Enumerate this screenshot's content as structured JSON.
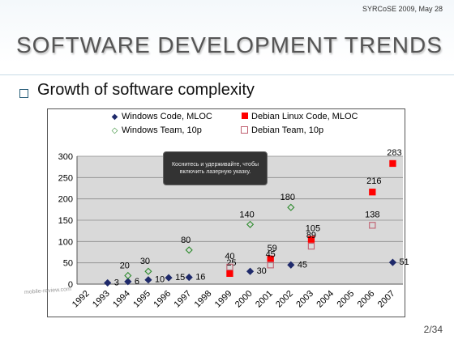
{
  "header": {
    "conference": "SYRCoSE 2009, May 28",
    "title": "Software Development Trends",
    "bullet": "Growth of software complexity"
  },
  "overlay": {
    "tooltip": "Коснитесь и удерживайте, чтобы включить лазерную указку.",
    "watermark": "mobile-review.com"
  },
  "footer": {
    "page": "2/34"
  },
  "colors": {
    "accent": "#2a5f7a",
    "plot_bg": "#d9d9d9",
    "windows_code": "#1f2a6b",
    "debian_code": "#ff0000",
    "windows_team": "#2e8b2e",
    "debian_team": "#c06070"
  },
  "chart_data": {
    "type": "scatter",
    "title": "",
    "xlabel": "",
    "ylabel": "",
    "ylim": [
      0,
      300
    ],
    "yticks": [
      "0",
      "50",
      "100",
      "150",
      "200",
      "250",
      "300"
    ],
    "categories": [
      "1992",
      "1993",
      "1994",
      "1995",
      "1996",
      "1997",
      "1998",
      "1999",
      "2000",
      "2001",
      "2002",
      "2003",
      "2004",
      "2005",
      "2006",
      "2007"
    ],
    "grid": true,
    "legend_position": "top",
    "series": [
      {
        "name": "Windows Code, MLOC",
        "marker": "diamond-filled",
        "color": "#1f2a6b",
        "points": [
          {
            "x": "1993",
            "y": 3,
            "label": "3"
          },
          {
            "x": "1994",
            "y": 6,
            "label": "6"
          },
          {
            "x": "1995",
            "y": 10,
            "label": "10"
          },
          {
            "x": "1996",
            "y": 15,
            "label": "15"
          },
          {
            "x": "1997",
            "y": 16,
            "label": "16"
          },
          {
            "x": "2000",
            "y": 30,
            "label": "30"
          },
          {
            "x": "2002",
            "y": 45,
            "label": "45"
          },
          {
            "x": "2007",
            "y": 51,
            "label": "51"
          }
        ]
      },
      {
        "name": "Windows Team, 10p",
        "marker": "diamond-open",
        "color": "#2e8b2e",
        "points": [
          {
            "x": "1994",
            "y": 20,
            "label": "20"
          },
          {
            "x": "1995",
            "y": 30,
            "label": "30"
          },
          {
            "x": "1997",
            "y": 80,
            "label": "80"
          },
          {
            "x": "2000",
            "y": 140,
            "label": "140"
          },
          {
            "x": "2002",
            "y": 180,
            "label": "180"
          }
        ]
      },
      {
        "name": "Debian Linux Code, MLOC",
        "marker": "square-filled",
        "color": "#ff0000",
        "points": [
          {
            "x": "1999",
            "y": 25,
            "label": "25"
          },
          {
            "x": "2001",
            "y": 59,
            "label": "59"
          },
          {
            "x": "2003",
            "y": 105,
            "label": "105"
          },
          {
            "x": "2006",
            "y": 216,
            "label": "216"
          },
          {
            "x": "2007",
            "y": 283,
            "label": "283"
          }
        ]
      },
      {
        "name": "Debian Team, 10p",
        "marker": "square-open",
        "color": "#c06070",
        "points": [
          {
            "x": "1999",
            "y": 40,
            "label": "40"
          },
          {
            "x": "2001",
            "y": 45,
            "label": "45"
          },
          {
            "x": "2003",
            "y": 89,
            "label": "89"
          },
          {
            "x": "2006",
            "y": 138,
            "label": "138"
          }
        ]
      }
    ]
  }
}
